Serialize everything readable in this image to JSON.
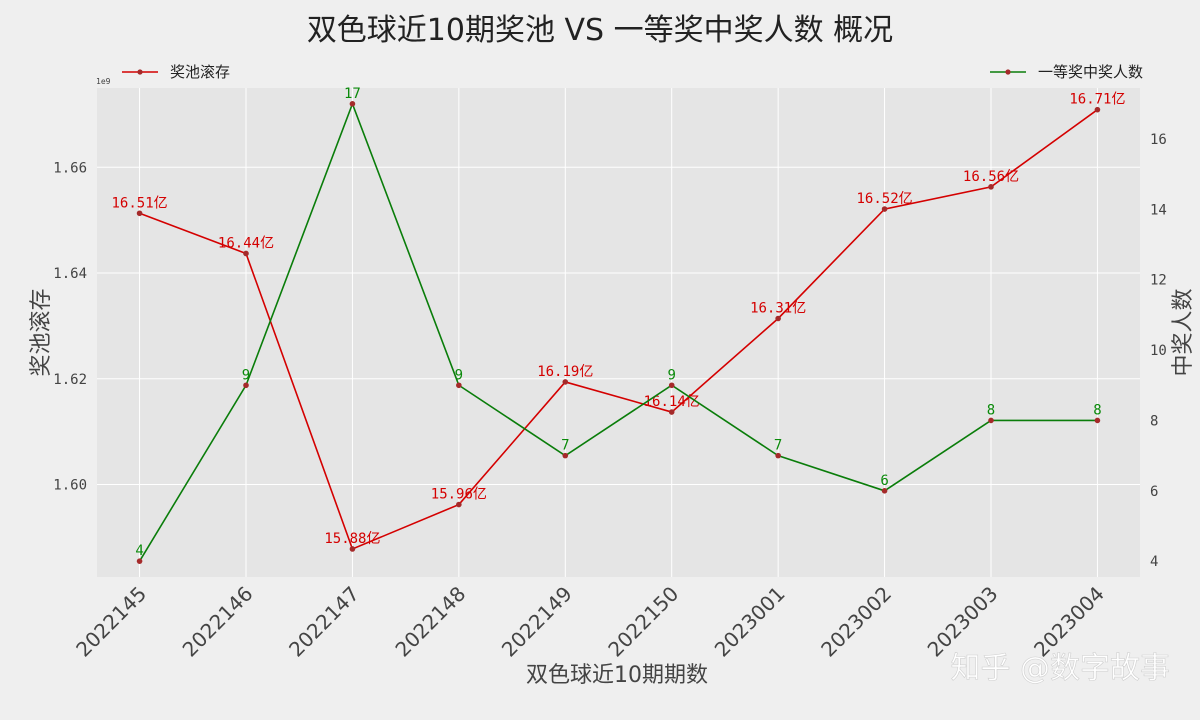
{
  "title": "双色球近10期奖池 VS 一等奖中奖人数 概况",
  "watermark": "知乎 @数字故事",
  "chart_data": {
    "type": "line",
    "title": "双色球近10期奖池 VS 一等奖中奖人数 概况",
    "xlabel": "双色球近10期期数",
    "ylabel_left": "奖池滚存",
    "ylabel_right": "中奖人数",
    "offset_label": "1e9",
    "categories": [
      "2022145",
      "2022146",
      "2022147",
      "2022148",
      "2022149",
      "2022150",
      "2023001",
      "2023002",
      "2023003",
      "2023004"
    ],
    "y_left_lim": [
      1.5825,
      1.675
    ],
    "y_left_ticks": [
      "1.60",
      "1.62",
      "1.64",
      "1.66"
    ],
    "y_right_lim": [
      3.55,
      17.45
    ],
    "y_right_ticks": [
      "4",
      "6",
      "8",
      "10",
      "12",
      "14",
      "16"
    ],
    "grid": true,
    "series": [
      {
        "name": "奖池滚存",
        "axis": "left",
        "color": "#d40000",
        "values": [
          1.6513,
          1.6437,
          1.5878,
          1.5962,
          1.6194,
          1.6137,
          1.6314,
          1.6521,
          1.6563,
          1.6709
        ],
        "labels": [
          "16.51亿",
          "16.44亿",
          "15.88亿",
          "15.96亿",
          "16.19亿",
          "16.14亿",
          "16.31亿",
          "16.52亿",
          "16.56亿",
          "16.71亿"
        ]
      },
      {
        "name": "一等奖中奖人数",
        "axis": "right",
        "color": "#0a7d0a",
        "values": [
          4,
          9,
          17,
          9,
          7,
          9,
          7,
          6,
          8,
          8
        ],
        "labels": [
          "4",
          "9",
          "17",
          "9",
          "7",
          "9",
          "7",
          "6",
          "8",
          "8"
        ]
      }
    ],
    "legend": [
      {
        "position": "top-left",
        "label": "奖池滚存"
      },
      {
        "position": "top-right",
        "label": "一等奖中奖人数"
      }
    ]
  }
}
